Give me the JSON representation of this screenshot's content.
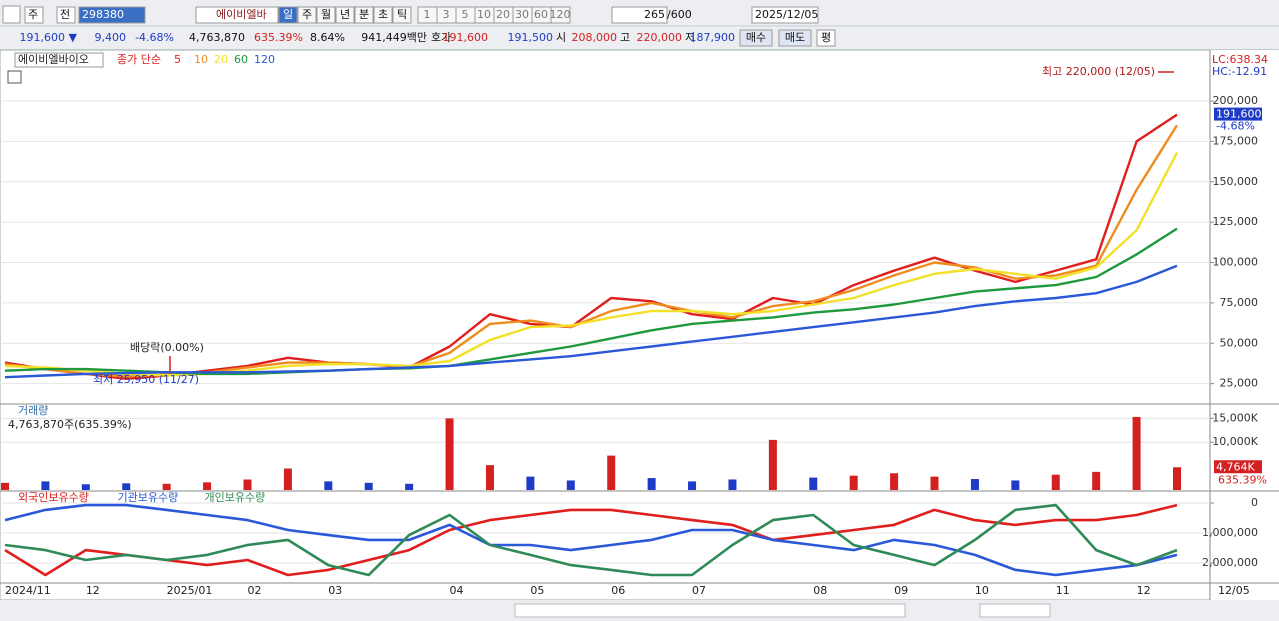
{
  "toolbar": {
    "period_type": "주",
    "compare": "전",
    "code": "298380",
    "name": "에이비엘바",
    "periods": [
      "일",
      "주",
      "월",
      "년",
      "분",
      "초",
      "틱"
    ],
    "intervals": [
      "1",
      "3",
      "5",
      "10",
      "20",
      "30",
      "60",
      "120"
    ],
    "count": "265",
    "count_max": "/600",
    "date": "2025/12/05"
  },
  "quote": {
    "price": "191,600 ▼",
    "change": "9,400",
    "change_rate": "-4.68%",
    "volume": "4,763,870",
    "volume_rate": "635.39%",
    "turnover": "8.64%",
    "amount": "941,449백만",
    "bid_label": "호가",
    "ask": "191,600",
    "bid": "191,500",
    "open_label": "시",
    "open": "208,000",
    "high_label": "고",
    "high": "220,000",
    "low_label": "저",
    "low": "187,900",
    "buy": "매수",
    "sell": "매도",
    "avg": "평"
  },
  "chart_data": [
    {
      "type": "line",
      "title": "에이비엘바이오",
      "indicator": "종가 단순",
      "categories": [
        "2024/11",
        null,
        "12",
        null,
        "2025/01",
        null,
        "02",
        null,
        "03",
        null,
        null,
        "04",
        null,
        "05",
        null,
        "06",
        null,
        "07",
        null,
        null,
        "08",
        null,
        "09",
        null,
        "10",
        null,
        "11",
        null,
        "12",
        null
      ],
      "x_end_label": "12/05",
      "series": [
        {
          "name": "5",
          "color": "#e01e1e",
          "values": [
            38000,
            34000,
            31000,
            28000,
            30000,
            33000,
            36000,
            41000,
            38000,
            37000,
            35000,
            48000,
            68000,
            62000,
            60000,
            78000,
            76000,
            68000,
            65000,
            78000,
            74000,
            86000,
            95000,
            103000,
            95000,
            88000,
            95000,
            102000,
            175000,
            191600
          ]
        },
        {
          "name": "10",
          "color": "#f08c1e",
          "values": [
            37000,
            34000,
            31000,
            29500,
            30500,
            32000,
            35000,
            38000,
            38000,
            37000,
            35500,
            44000,
            62000,
            64000,
            60000,
            70000,
            75000,
            70000,
            66000,
            73000,
            76000,
            83000,
            92000,
            100000,
            97000,
            90000,
            92000,
            98000,
            145000,
            185000
          ]
        },
        {
          "name": "20",
          "color": "#f2e128",
          "values": [
            36000,
            35000,
            33000,
            31000,
            30000,
            31000,
            33000,
            36000,
            37000,
            37000,
            36000,
            39000,
            52000,
            60000,
            61000,
            66000,
            70000,
            70000,
            68000,
            70000,
            74000,
            78000,
            86000,
            93000,
            96000,
            93000,
            90000,
            97000,
            120000,
            168000
          ]
        },
        {
          "name": "60",
          "color": "#1e9a3c",
          "values": [
            33000,
            34000,
            34000,
            33000,
            32000,
            31000,
            31000,
            32000,
            33000,
            34000,
            34500,
            36000,
            40000,
            44000,
            48000,
            53000,
            58000,
            62000,
            64000,
            66000,
            69000,
            71000,
            74000,
            78000,
            82000,
            84000,
            86000,
            91000,
            105000,
            121000
          ]
        },
        {
          "name": "120",
          "color": "#2b58d8",
          "values": [
            29000,
            30000,
            31000,
            31500,
            32000,
            32000,
            32000,
            32500,
            33000,
            34000,
            35000,
            36000,
            38000,
            40000,
            42000,
            45000,
            48000,
            51000,
            54000,
            57000,
            60000,
            63000,
            66000,
            69000,
            73000,
            76000,
            78000,
            81000,
            88000,
            98000
          ]
        }
      ],
      "ylim": [
        13000,
        228500
      ],
      "yticks": [
        {
          "value": 25000,
          "label": "25,000"
        },
        {
          "value": 50000,
          "label": "50,000"
        },
        {
          "value": 75000,
          "label": "75,000"
        },
        {
          "value": 100000,
          "label": "100,000"
        },
        {
          "value": 125000,
          "label": "125,000"
        },
        {
          "value": 150000,
          "label": "150,000"
        },
        {
          "value": 175000,
          "label": "175,000"
        },
        {
          "value": 200000,
          "label": "200,000"
        }
      ],
      "grid": true,
      "annotations": {
        "high": "최고 220,000 (12/05)",
        "low": "최저 25,950 (11/27)",
        "dividend": "배당락(0.00%)",
        "lc": "LC:638.34",
        "hc": "HC:-12.91"
      },
      "last_label": "191,600",
      "last_change": "-4.68%"
    },
    {
      "type": "bar",
      "title": "거래량",
      "subtitle": "4,763,870주(635.39%)",
      "values": [
        1500,
        1800,
        1200,
        1400,
        1300,
        1600,
        2200,
        4500,
        1800,
        1500,
        1300,
        15000,
        5200,
        2800,
        2000,
        7200,
        2500,
        1800,
        2200,
        10500,
        2600,
        3000,
        3500,
        2800,
        2300,
        2000,
        3200,
        3800,
        15300,
        4764
      ],
      "up_color": "#d42020",
      "down_color": "#1e3cc8",
      "ylim": [
        0,
        17800
      ],
      "yticks": [
        {
          "value": 10000,
          "label": "10,000K"
        },
        {
          "value": 15000,
          "label": "15,000K"
        }
      ],
      "grid": true,
      "last_label": "4,764K",
      "last_rate": "635.39%"
    },
    {
      "type": "line",
      "series": [
        {
          "name": "외국인보유수량",
          "color": "#e01e1e",
          "values": [
            -1570000,
            -2400000,
            -1570000,
            -1730000,
            -1900000,
            -2070000,
            -1900000,
            -2400000,
            -2230000,
            -1900000,
            -1570000,
            -900000,
            -570000,
            -400000,
            -230000,
            -230000,
            -400000,
            -570000,
            -730000,
            -1230000,
            -1070000,
            -900000,
            -730000,
            -230000,
            -570000,
            -730000,
            -570000,
            -570000,
            -400000,
            -70000
          ]
        },
        {
          "name": "기관보유수량",
          "color": "#2b58d8",
          "values": [
            -570000,
            -230000,
            -70000,
            -70000,
            -230000,
            -400000,
            -570000,
            -900000,
            -1070000,
            -1230000,
            -1230000,
            -730000,
            -1400000,
            -1400000,
            -1570000,
            -1400000,
            -1230000,
            -900000,
            -900000,
            -1230000,
            -1400000,
            -1570000,
            -1230000,
            -1400000,
            -1730000,
            -2230000,
            -2400000,
            -2230000,
            -2070000,
            -1730000
          ]
        },
        {
          "name": "개인보유수량",
          "color": "#2e8b57",
          "values": [
            -1400000,
            -1570000,
            -1900000,
            -1730000,
            -1900000,
            -1730000,
            -1400000,
            -1230000,
            -2070000,
            -2400000,
            -1070000,
            -400000,
            -1400000,
            -1730000,
            -2070000,
            -2230000,
            -2400000,
            -2400000,
            -1400000,
            -570000,
            -400000,
            -1400000,
            -1730000,
            -2070000,
            -1230000,
            -230000,
            -70000,
            -1570000,
            -2070000,
            -1570000
          ]
        }
      ],
      "ylim": [
        -2633000,
        367000
      ],
      "yticks": [
        0,
        {
          "value": -1000000,
          "label": "-1,000,000"
        },
        {
          "value": -2000000,
          "label": "-2,000,000"
        }
      ],
      "grid": true
    }
  ]
}
